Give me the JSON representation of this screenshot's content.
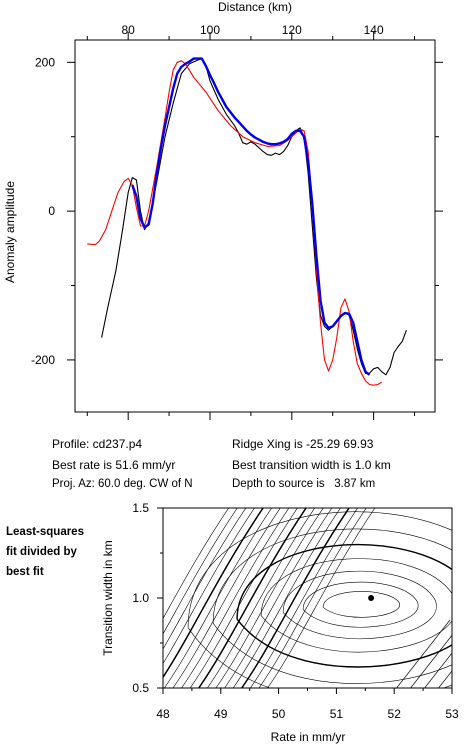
{
  "chart_data": [
    {
      "type": "line",
      "title": "",
      "xlabel": "Distance (km)",
      "ylabel": "Anomaly amplitude",
      "xlim": [
        67,
        155
      ],
      "ylim": [
        -270,
        230
      ],
      "x_ticks": [
        80,
        100,
        120,
        140
      ],
      "y_ticks": [
        200,
        0,
        -200
      ],
      "x_tick_labels": [
        "80",
        "100",
        "120",
        "140"
      ],
      "y_tick_labels": [
        "200",
        "0",
        "-200"
      ],
      "x_axis_position": "top",
      "grid": false,
      "legend": "none",
      "series": [
        {
          "color": "#000000",
          "points": [
            [
              73.5,
              -170
            ],
            [
              75,
              -130
            ],
            [
              77,
              -80
            ],
            [
              78.5,
              -30
            ],
            [
              80,
              25
            ],
            [
              81,
              45
            ],
            [
              82,
              42
            ],
            [
              83,
              0
            ],
            [
              84,
              -25
            ],
            [
              85,
              -15
            ],
            [
              87,
              40
            ],
            [
              89,
              100
            ],
            [
              91,
              145
            ],
            [
              93,
              185
            ],
            [
              95,
              198
            ],
            [
              97,
              203
            ],
            [
              98,
              205
            ],
            [
              99,
              195
            ],
            [
              100,
              175
            ],
            [
              102,
              150
            ],
            [
              104,
              130
            ],
            [
              106,
              115
            ],
            [
              107,
              105
            ],
            [
              108,
              92
            ],
            [
              109,
              90
            ],
            [
              110,
              93
            ],
            [
              111,
              90
            ],
            [
              112,
              85
            ],
            [
              113,
              80
            ],
            [
              114,
              76
            ],
            [
              115,
              75
            ],
            [
              116,
              78
            ],
            [
              117,
              76
            ],
            [
              118,
              80
            ],
            [
              119,
              88
            ],
            [
              120,
              100
            ],
            [
              121,
              108
            ],
            [
              122,
              112
            ],
            [
              123,
              100
            ],
            [
              124,
              50
            ],
            [
              125,
              -20
            ],
            [
              126,
              -90
            ],
            [
              127,
              -140
            ],
            [
              128,
              -155
            ],
            [
              129,
              -160
            ],
            [
              130,
              -155
            ],
            [
              131,
              -148
            ],
            [
              132,
              -142
            ],
            [
              133,
              -137
            ],
            [
              134,
              -140
            ],
            [
              135,
              -160
            ],
            [
              136,
              -185
            ],
            [
              137,
              -205
            ],
            [
              138,
              -218
            ],
            [
              139,
              -218
            ],
            [
              140,
              -212
            ],
            [
              141,
              -210
            ],
            [
              142,
              -216
            ],
            [
              143,
              -220
            ],
            [
              144,
              -210
            ],
            [
              145,
              -190
            ],
            [
              146,
              -182
            ],
            [
              147,
              -175
            ],
            [
              148,
              -160
            ]
          ]
        },
        {
          "color": "#ff0000",
          "points": [
            [
              70,
              -44
            ],
            [
              72,
              -45
            ],
            [
              73,
              -40
            ],
            [
              74.5,
              -25
            ],
            [
              76,
              0
            ],
            [
              77.5,
              25
            ],
            [
              79,
              40
            ],
            [
              80,
              44
            ],
            [
              81,
              35
            ],
            [
              82,
              5
            ],
            [
              83,
              -20
            ],
            [
              84,
              -20
            ],
            [
              85,
              0
            ],
            [
              87,
              60
            ],
            [
              89,
              125
            ],
            [
              90,
              160
            ],
            [
              91,
              190
            ],
            [
              92,
              200
            ],
            [
              93,
              202
            ],
            [
              94,
              198
            ],
            [
              96,
              180
            ],
            [
              99,
              160
            ],
            [
              102,
              135
            ],
            [
              105,
              115
            ],
            [
              108,
              100
            ],
            [
              111,
              92
            ],
            [
              114,
              87
            ],
            [
              117,
              88
            ],
            [
              119,
              95
            ],
            [
              121,
              105
            ],
            [
              122,
              110
            ],
            [
              123,
              108
            ],
            [
              124,
              80
            ],
            [
              125,
              10
            ],
            [
              126,
              -80
            ],
            [
              127,
              -150
            ],
            [
              128,
              -200
            ],
            [
              129,
              -215
            ],
            [
              130,
              -200
            ],
            [
              131,
              -170
            ],
            [
              132,
              -130
            ],
            [
              133,
              -118
            ],
            [
              134,
              -135
            ],
            [
              135,
              -175
            ],
            [
              136,
              -205
            ],
            [
              137,
              -218
            ],
            [
              138,
              -228
            ],
            [
              139,
              -233
            ],
            [
              140,
              -234
            ],
            [
              141,
              -233
            ],
            [
              142,
              -230
            ]
          ]
        },
        {
          "color": "#0000ee",
          "points": [
            [
              81,
              35
            ],
            [
              82,
              20
            ],
            [
              83,
              -10
            ],
            [
              84,
              -22
            ],
            [
              85,
              -18
            ],
            [
              86,
              10
            ],
            [
              87,
              50
            ],
            [
              88,
              85
            ],
            [
              89,
              115
            ],
            [
              90,
              140
            ],
            [
              91,
              165
            ],
            [
              92,
              185
            ],
            [
              93,
              194
            ],
            [
              94,
              198
            ],
            [
              95,
              201
            ],
            [
              96,
              205
            ],
            [
              97,
              205
            ],
            [
              98,
              205
            ],
            [
              99,
              195
            ],
            [
              100,
              183
            ],
            [
              101,
              172
            ],
            [
              102,
              160
            ],
            [
              103,
              150
            ],
            [
              104,
              140
            ],
            [
              105,
              133
            ],
            [
              106,
              126
            ],
            [
              107,
              120
            ],
            [
              108,
              114
            ],
            [
              109,
              108
            ],
            [
              110,
              103
            ],
            [
              111,
              99
            ],
            [
              112,
              96
            ],
            [
              113,
              93
            ],
            [
              114,
              91
            ],
            [
              115,
              90
            ],
            [
              116,
              90
            ],
            [
              117,
              91
            ],
            [
              118,
              93
            ],
            [
              119,
              97
            ],
            [
              120,
              104
            ],
            [
              121,
              108
            ],
            [
              122,
              108
            ],
            [
              123,
              100
            ],
            [
              124,
              65
            ],
            [
              125,
              10
            ],
            [
              126,
              -60
            ],
            [
              127,
              -120
            ],
            [
              128,
              -150
            ],
            [
              129,
              -157
            ],
            [
              130,
              -155
            ],
            [
              131,
              -148
            ],
            [
              132,
              -141
            ],
            [
              133,
              -137
            ],
            [
              134,
              -138
            ],
            [
              135,
              -150
            ],
            [
              136,
              -175
            ],
            [
              137,
              -200
            ],
            [
              138,
              -216
            ],
            [
              139,
              -220
            ]
          ]
        }
      ]
    },
    {
      "type": "contour",
      "title": "",
      "xlabel": "Rate in mm/yr",
      "ylabel": "Transition width in km",
      "xlim": [
        48,
        53
      ],
      "ylim": [
        0.5,
        1.5
      ],
      "x_ticks": [
        48,
        49,
        50,
        51,
        52,
        53
      ],
      "y_ticks": [
        0.5,
        1.0,
        1.5
      ],
      "x_tick_labels": [
        "48",
        "49",
        "50",
        "51",
        "52",
        "53"
      ],
      "y_tick_labels": [
        "0.5",
        "1.0",
        "1.5"
      ],
      "best_fit": {
        "rate": 51.6,
        "width": 1.0
      }
    }
  ],
  "info": {
    "profile": "Profile: cd237.p4",
    "best_rate": "Best rate is 51.6 mm/yr",
    "proj_az": "Proj. Az: 60.0 deg. CW of N",
    "ridge_xing": "Ridge Xing is -25.29 69.93",
    "transition": "Best transition width is 1.0 km",
    "depth": "Depth to source is   3.87 km"
  },
  "note": {
    "line1": "Least-squares",
    "line2": "fit divided by",
    "line3": "best fit"
  }
}
